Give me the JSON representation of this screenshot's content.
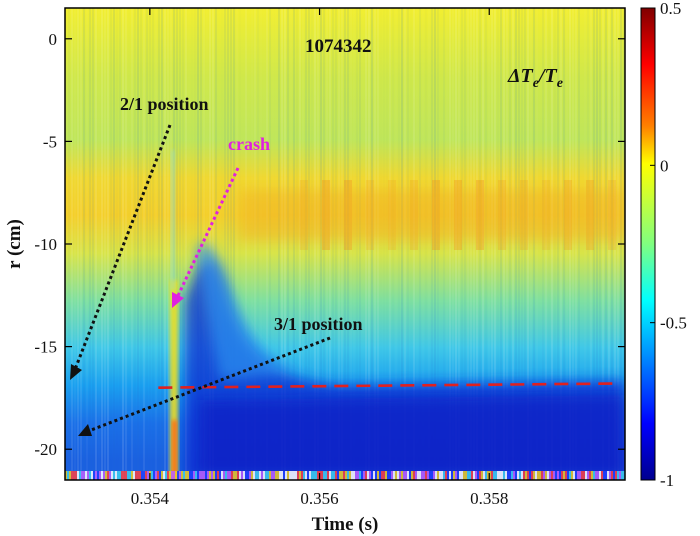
{
  "chart_data": {
    "type": "heatmap",
    "title": "",
    "xlabel": "Time (s)",
    "ylabel": "r (cm)",
    "xlim": [
      0.353,
      0.3596
    ],
    "ylim": [
      -21.5,
      1.5
    ],
    "x_ticks": [
      0.354,
      0.356,
      0.358
    ],
    "x_tick_labels": [
      "0.354",
      "0.356",
      "0.358"
    ],
    "y_ticks": [
      0,
      -5,
      -10,
      -15,
      -20
    ],
    "y_tick_labels": [
      "0",
      "-5",
      "-10",
      "-15",
      "-20"
    ],
    "colorbar": {
      "label": "",
      "range": [
        -1,
        0.5
      ],
      "ticks": [
        0.5,
        0,
        -0.5,
        -1
      ],
      "tick_labels": [
        "0.5",
        "0",
        "-0.5",
        "-1"
      ],
      "colormap": "jet"
    },
    "shot_number": "1074342",
    "quantity_label": {
      "main": "ΔT",
      "sub1": "e",
      "slash": "/T",
      "sub2": "e"
    },
    "annotations": [
      {
        "text": "2/1 position",
        "color": "#111111",
        "arrow_to": [
          0.353,
          -17.0
        ]
      },
      {
        "text": "crash",
        "color": "#e020e0",
        "arrow_to": [
          0.35425,
          -13.0
        ]
      },
      {
        "text": "3/1 position",
        "color": "#111111",
        "arrow_to": [
          0.353,
          -19.7
        ]
      }
    ],
    "reference_line": {
      "style": "dashed",
      "color": "#e02020",
      "x": [
        0.3541,
        0.3595
      ],
      "y": [
        -17.0,
        -16.8
      ]
    },
    "regions": [
      {
        "description": "core region r 0..-5",
        "value": 0.0
      },
      {
        "description": "positive band around r=-9",
        "value": 0.12
      },
      {
        "description": "crash precursor line t=0.35425",
        "value": 0.35
      },
      {
        "description": "post-crash negative region r<-17",
        "value": -0.8
      }
    ],
    "grid": false,
    "legend": "none"
  }
}
